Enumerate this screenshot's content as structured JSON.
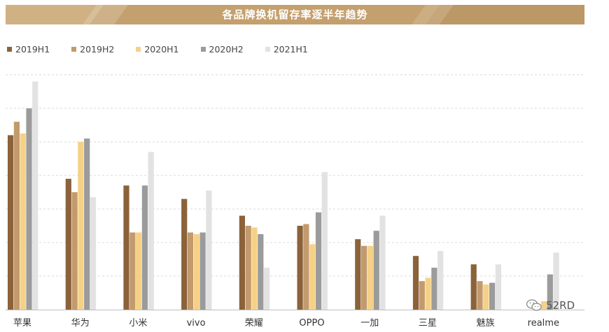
{
  "title": "各品牌换机留存率逐半年趋势",
  "watermark": "52RD",
  "colors": {
    "banner": "#c4a06e",
    "grid": "#d8d8d8",
    "axis": "#bfbfbf",
    "label": "#333333"
  },
  "chart_data": {
    "type": "bar",
    "title": "各品牌换机留存率逐半年趋势",
    "xlabel": "",
    "ylabel": "",
    "ylim": [
      0,
      7
    ],
    "grid": true,
    "legend_position": "top-left",
    "categories": [
      "苹果",
      "华为",
      "小米",
      "vivo",
      "荣耀",
      "OPPO",
      "一加",
      "三星",
      "魅族",
      "realme"
    ],
    "series": [
      {
        "name": "2019H1",
        "color": "#8b6239",
        "values": [
          5.2,
          3.9,
          3.7,
          3.3,
          2.8,
          2.5,
          2.1,
          1.6,
          1.35,
          null
        ]
      },
      {
        "name": "2019H2",
        "color": "#c29a6e",
        "values": [
          5.6,
          3.5,
          2.3,
          2.3,
          2.5,
          2.55,
          1.9,
          0.85,
          0.85,
          null
        ]
      },
      {
        "name": "2020H1",
        "color": "#f5d187",
        "values": [
          5.25,
          5.0,
          2.3,
          2.25,
          2.45,
          1.95,
          1.9,
          0.95,
          0.75,
          0.25
        ]
      },
      {
        "name": "2020H2",
        "color": "#9b9b9b",
        "values": [
          6.0,
          5.1,
          3.7,
          2.3,
          2.25,
          2.9,
          2.35,
          1.25,
          0.8,
          1.05
        ]
      },
      {
        "name": "2021H1",
        "color": "#e2e2e2",
        "values": [
          6.8,
          3.35,
          4.7,
          3.55,
          1.25,
          4.1,
          2.8,
          1.75,
          1.35,
          1.7
        ]
      }
    ]
  }
}
